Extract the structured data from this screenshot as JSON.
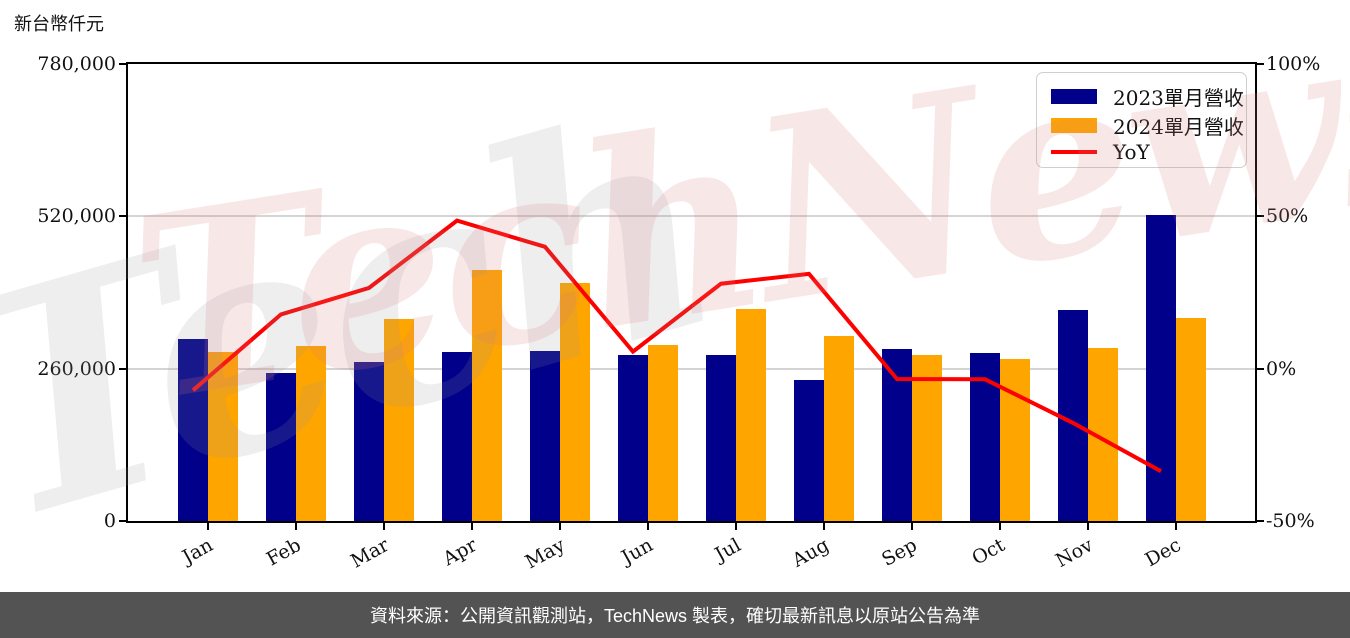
{
  "unit_label": "新台幣仟元",
  "watermark": {
    "primary": "TechNews",
    "secondary": "Tech"
  },
  "footer": {
    "text": "資料來源：公開資訊觀測站，TechNews 製表，確切最新訊息以原站公告為準"
  },
  "colors": {
    "bar_2023": "#00008B",
    "bar_2024": "#FFA500",
    "yoy_line": "#FF0000",
    "grid": "#d4d4d4",
    "footer_bg": "#535353",
    "watermark_pink": "rgba(216,120,120,0.18)"
  },
  "legend": [
    {
      "label": "2023單月營收",
      "swatch": "bar",
      "color": "#00008B"
    },
    {
      "label": "2024單月營收",
      "swatch": "bar",
      "color": "#FFA500"
    },
    {
      "label": "YoY",
      "swatch": "line",
      "color": "#FF0000"
    }
  ],
  "chart_data": {
    "type": "bar",
    "subtype": "grouped-bars-with-line",
    "title": "",
    "ylabel_left": "新台幣仟元",
    "categories": [
      "Jan",
      "Feb",
      "Mar",
      "Apr",
      "May",
      "Jun",
      "Jul",
      "Aug",
      "Sep",
      "Oct",
      "Nov",
      "Dec"
    ],
    "series": [
      {
        "name": "2023單月營收",
        "type": "bar",
        "axis": "left",
        "color": "#00008B",
        "values": [
          311000,
          253000,
          272000,
          288000,
          290000,
          284000,
          283000,
          241000,
          293000,
          286000,
          360000,
          523000
        ]
      },
      {
        "name": "2024單月營收",
        "type": "bar",
        "axis": "left",
        "color": "#FFA500",
        "values": [
          289000,
          298000,
          344000,
          428000,
          406000,
          300000,
          362000,
          316000,
          283000,
          276000,
          296000,
          347000
        ]
      },
      {
        "name": "YoY",
        "type": "line",
        "axis": "right",
        "color": "#FF0000",
        "values": [
          -7.1,
          17.8,
          26.5,
          48.6,
          40.0,
          5.6,
          27.9,
          31.1,
          -3.4,
          -3.5,
          -17.8,
          -33.7
        ]
      }
    ],
    "left_axis": {
      "min": 0,
      "max": 780000,
      "tick_values": [
        0,
        260000,
        520000,
        780000
      ],
      "tick_labels": [
        "0",
        "260,000",
        "520,000",
        "780,000"
      ]
    },
    "right_axis": {
      "min": -50,
      "max": 100,
      "tick_values": [
        -50,
        0,
        50,
        100
      ],
      "tick_labels": [
        "-50%",
        "0%",
        "50%",
        "100%"
      ]
    },
    "grid": "horizontal",
    "legend_position": "top-right"
  }
}
